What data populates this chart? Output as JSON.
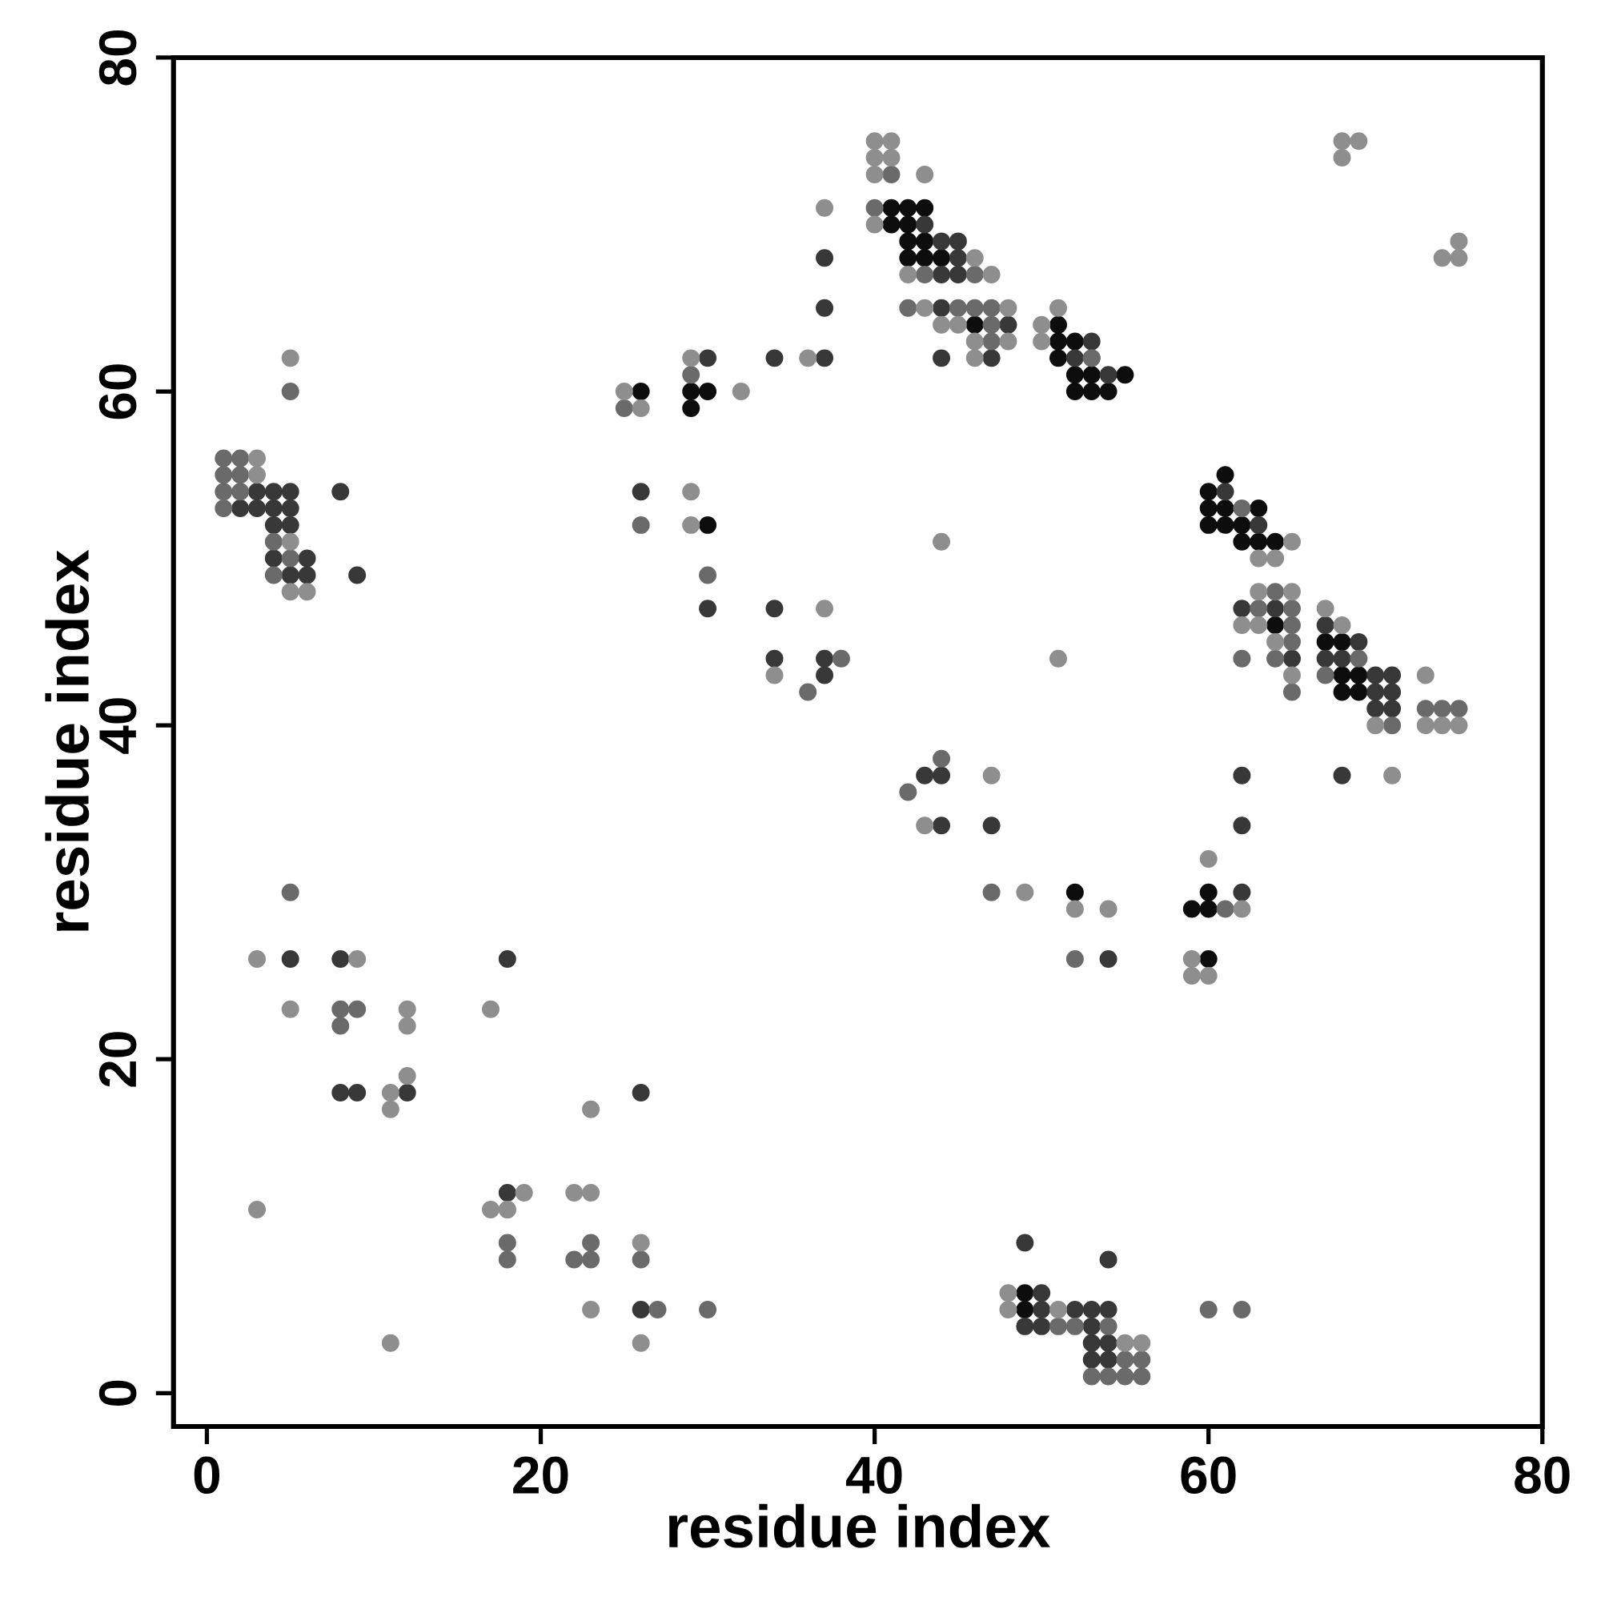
{
  "chart_data": {
    "type": "scatter",
    "xlabel": "residue index",
    "ylabel": "residue index",
    "xlim": [
      -2,
      80
    ],
    "ylim": [
      -2,
      80
    ],
    "xticks": [
      0,
      20,
      40,
      60,
      80
    ],
    "yticks": [
      0,
      20,
      40,
      60,
      80
    ],
    "marker": "circle",
    "series": [
      {
        "color": "#0d0d0d",
        "x": [
          26,
          29,
          30,
          29,
          30,
          41,
          42,
          43,
          41,
          42,
          42,
          43,
          42,
          43,
          44,
          46,
          51,
          51,
          52,
          51,
          52,
          53,
          55,
          52,
          53,
          54,
          61,
          60,
          60,
          61,
          63,
          60,
          61,
          62,
          62,
          63,
          64,
          64,
          67,
          68,
          68,
          69,
          68,
          69,
          52,
          59,
          60,
          60,
          60,
          49,
          49
        ],
        "values": [
          60,
          60,
          60,
          59,
          52,
          71,
          71,
          71,
          70,
          70,
          69,
          69,
          68,
          68,
          68,
          64,
          64,
          63,
          63,
          62,
          61,
          61,
          61,
          60,
          60,
          60,
          55,
          54,
          53,
          53,
          53,
          52,
          52,
          52,
          51,
          51,
          51,
          46,
          45,
          45,
          43,
          43,
          42,
          42,
          30,
          29,
          30,
          29,
          26,
          6,
          5
        ]
      },
      {
        "color": "#383838",
        "x": [
          3,
          4,
          5,
          2,
          3,
          4,
          5,
          4,
          5,
          4,
          6,
          5,
          6,
          8,
          9,
          5,
          8,
          8,
          9,
          12,
          18,
          18,
          26,
          26,
          26,
          30,
          30,
          34,
          37,
          37,
          37,
          34,
          34,
          37,
          37,
          43,
          44,
          45,
          45,
          44,
          45,
          44,
          48,
          44,
          47,
          53,
          52,
          54,
          61,
          63,
          62,
          64,
          65,
          67,
          67,
          68,
          69,
          70,
          71,
          70,
          71,
          70,
          71,
          68,
          43,
          44,
          44,
          47,
          54,
          62,
          62,
          62,
          49,
          54,
          50,
          50,
          52,
          53,
          54,
          49,
          50,
          53,
          53,
          54,
          53,
          54
        ],
        "values": [
          54,
          54,
          54,
          53,
          53,
          53,
          53,
          52,
          52,
          50,
          50,
          49,
          49,
          54,
          49,
          26,
          26,
          18,
          18,
          18,
          26,
          12,
          54,
          18,
          5,
          62,
          47,
          62,
          62,
          68,
          65,
          47,
          44,
          44,
          43,
          70,
          69,
          69,
          68,
          67,
          67,
          65,
          64,
          62,
          62,
          63,
          62,
          61,
          54,
          52,
          47,
          47,
          44,
          46,
          44,
          44,
          45,
          43,
          43,
          42,
          42,
          41,
          41,
          37,
          37,
          37,
          34,
          34,
          26,
          37,
          34,
          30,
          9,
          8,
          6,
          5,
          5,
          5,
          5,
          4,
          4,
          4,
          3,
          3,
          2,
          2
        ]
      },
      {
        "color": "#6a6a6a",
        "x": [
          5,
          1,
          2,
          1,
          2,
          1,
          2,
          1,
          4,
          5,
          4,
          5,
          30,
          8,
          9,
          8,
          18,
          18,
          22,
          23,
          23,
          26,
          27,
          30,
          25,
          26,
          29,
          36,
          38,
          41,
          40,
          42,
          43,
          45,
          46,
          47,
          46,
          47,
          47,
          53,
          53,
          62,
          64,
          63,
          65,
          65,
          65,
          62,
          64,
          69,
          67,
          73,
          74,
          75,
          71,
          65,
          42,
          44,
          47,
          52,
          61,
          51,
          52,
          54,
          55,
          56,
          53,
          54,
          55,
          56,
          60,
          62
        ],
        "values": [
          60,
          56,
          56,
          55,
          55,
          54,
          54,
          53,
          51,
          50,
          49,
          30,
          49,
          23,
          23,
          22,
          9,
          8,
          8,
          8,
          9,
          8,
          5,
          5,
          59,
          52,
          61,
          42,
          44,
          73,
          71,
          65,
          67,
          65,
          65,
          65,
          67,
          64,
          63,
          62,
          62,
          53,
          48,
          47,
          47,
          46,
          45,
          44,
          44,
          44,
          43,
          41,
          41,
          41,
          40,
          42,
          36,
          38,
          30,
          26,
          29,
          4,
          4,
          4,
          2,
          2,
          1,
          1,
          1,
          1,
          5,
          5
        ]
      },
      {
        "color": "#8e8e8e",
        "x": [
          5,
          3,
          3,
          5,
          5,
          6,
          3,
          9,
          5,
          12,
          12,
          12,
          11,
          11,
          17,
          18,
          26,
          3,
          11,
          17,
          18,
          19,
          22,
          23,
          23,
          23,
          26,
          26,
          25,
          29,
          32,
          29,
          29,
          36,
          37,
          34,
          37,
          40,
          41,
          40,
          41,
          40,
          43,
          40,
          46,
          42,
          47,
          43,
          48,
          44,
          45,
          46,
          48,
          46,
          50,
          51,
          50,
          44,
          51,
          65,
          63,
          64,
          63,
          65,
          62,
          63,
          64,
          65,
          67,
          68,
          73,
          70,
          73,
          74,
          75,
          68,
          69,
          68,
          74,
          75,
          75,
          71,
          43,
          47,
          49,
          52,
          54,
          60,
          62,
          59,
          59,
          60,
          48,
          48,
          51,
          55,
          56
        ],
        "values": [
          62,
          56,
          55,
          51,
          48,
          48,
          26,
          26,
          23,
          23,
          22,
          19,
          18,
          17,
          23,
          11,
          3,
          11,
          3,
          11,
          11,
          12,
          12,
          12,
          17,
          5,
          9,
          59,
          60,
          62,
          60,
          54,
          52,
          62,
          71,
          43,
          47,
          75,
          75,
          74,
          74,
          73,
          73,
          70,
          68,
          67,
          67,
          65,
          65,
          64,
          64,
          63,
          63,
          62,
          64,
          65,
          63,
          51,
          44,
          51,
          50,
          50,
          48,
          48,
          46,
          46,
          45,
          43,
          47,
          46,
          43,
          40,
          40,
          40,
          40,
          75,
          75,
          74,
          68,
          68,
          69,
          37,
          34,
          37,
          30,
          29,
          29,
          32,
          29,
          26,
          25,
          25,
          6,
          5,
          5,
          3,
          3
        ]
      }
    ]
  }
}
